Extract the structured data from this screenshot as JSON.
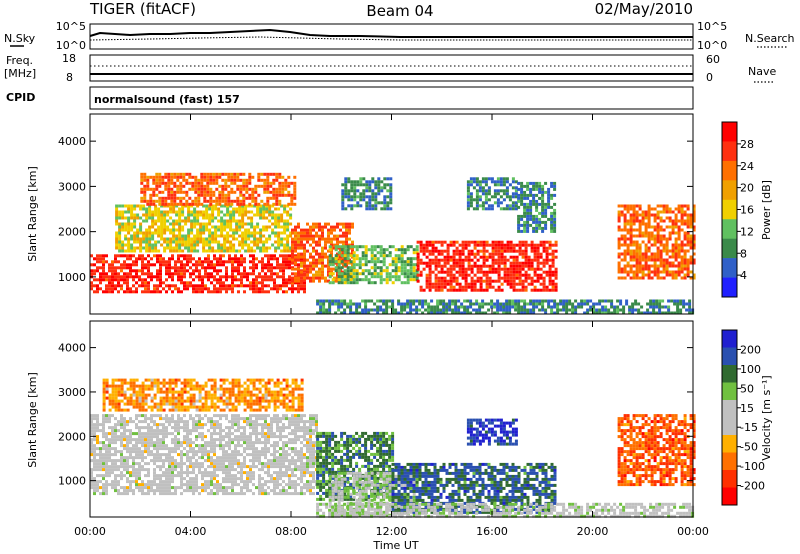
{
  "header": {
    "radar": "TIGER (fitACF)",
    "beam": "Beam 04",
    "date": "02/May/2010"
  },
  "top_strip": {
    "left_label": "N.Sky",
    "right_label": "N.Search",
    "left_ticks": [
      "10^5",
      "10^0"
    ],
    "right_ticks": [
      "10^5",
      "10^0"
    ]
  },
  "freq_strip": {
    "left_label_line1": "Freq.",
    "left_label_line2": "[MHz]",
    "left_ticks": [
      "18",
      "8"
    ],
    "right_label": "Nave",
    "right_ticks": [
      "60",
      "0"
    ]
  },
  "cpid": {
    "label": "CPID",
    "value": "normalsound (fast) 157"
  },
  "colors": {
    "power_scale": [
      "#2020ff",
      "#3060c8",
      "#3a8a4a",
      "#60c060",
      "#f0d000",
      "#f0a000",
      "#ff7000",
      "#ff3010",
      "#ff0000"
    ],
    "velocity_scale": [
      "#2020d0",
      "#2a50b0",
      "#306a30",
      "#70c040",
      "#c0c0c0",
      "#c0c0c0",
      "#ffb000",
      "#ff7000",
      "#ff3000",
      "#ff0000"
    ]
  },
  "chart_data": [
    {
      "type": "heatmap",
      "panel": "power",
      "ylabel": "Slant Range [km]",
      "y_ticks": [
        "1000",
        "2000",
        "3000",
        "4000"
      ],
      "ylim": [
        180,
        4600
      ],
      "x_ticks": [
        "00:00",
        "04:00",
        "08:00",
        "12:00",
        "16:00",
        "20:00",
        "00:00"
      ],
      "xlim_hours": [
        0,
        24
      ],
      "colorbar": {
        "label": "Power [dB]",
        "ticks": [
          "4",
          "8",
          "12",
          "16",
          "20",
          "24",
          "28"
        ],
        "range": [
          0,
          32
        ]
      },
      "regions": [
        {
          "t": [
            0.0,
            8.5
          ],
          "r": [
            700,
            1500
          ],
          "value": 28
        },
        {
          "t": [
            1.0,
            8.0
          ],
          "r": [
            1600,
            2600
          ],
          "value": 16
        },
        {
          "t": [
            2.0,
            8.2
          ],
          "r": [
            2600,
            3300
          ],
          "value": 24
        },
        {
          "t": [
            8.0,
            10.5
          ],
          "r": [
            900,
            2200
          ],
          "value": 24
        },
        {
          "t": [
            9.5,
            13.0
          ],
          "r": [
            900,
            1700
          ],
          "value": 12
        },
        {
          "t": [
            13.0,
            18.5
          ],
          "r": [
            700,
            1800
          ],
          "value": 28
        },
        {
          "t": [
            9.0,
            24.0
          ],
          "r": [
            200,
            500
          ],
          "value": 8
        },
        {
          "t": [
            10.0,
            12.0
          ],
          "r": [
            2500,
            3200
          ],
          "value": 8
        },
        {
          "t": [
            15.0,
            17.0
          ],
          "r": [
            2500,
            3200
          ],
          "value": 8
        },
        {
          "t": [
            17.0,
            18.5
          ],
          "r": [
            2000,
            3100
          ],
          "value": 8
        },
        {
          "t": [
            21.0,
            24.0
          ],
          "r": [
            1000,
            2600
          ],
          "value": 24
        }
      ]
    },
    {
      "type": "heatmap",
      "panel": "velocity",
      "ylabel": "Slant Range [km]",
      "y_ticks": [
        "1000",
        "2000",
        "3000",
        "4000"
      ],
      "ylim": [
        180,
        4600
      ],
      "x_ticks": [
        "00:00",
        "04:00",
        "08:00",
        "12:00",
        "16:00",
        "20:00",
        "00:00"
      ],
      "xlabel": "Time UT",
      "xlim_hours": [
        0,
        24
      ],
      "colorbar": {
        "label": "Velocity [m s⁻¹]",
        "ticks": [
          "200",
          "100",
          "50",
          "15",
          "-15",
          "-50",
          "-100",
          "-200"
        ],
        "range": [
          -250,
          250
        ]
      },
      "regions": [
        {
          "t": [
            0.0,
            9.0
          ],
          "r": [
            700,
            2500
          ],
          "value": 0
        },
        {
          "t": [
            0.5,
            8.5
          ],
          "r": [
            2600,
            3300
          ],
          "value": -100
        },
        {
          "t": [
            9.0,
            12.0
          ],
          "r": [
            600,
            2100
          ],
          "value": 120
        },
        {
          "t": [
            9.5,
            13.0
          ],
          "r": [
            200,
            1200
          ],
          "value": 40
        },
        {
          "t": [
            12.0,
            18.5
          ],
          "r": [
            300,
            1400
          ],
          "value": 150
        },
        {
          "t": [
            9.0,
            24.0
          ],
          "r": [
            200,
            500
          ],
          "value": 20
        },
        {
          "t": [
            15.0,
            17.0
          ],
          "r": [
            1800,
            2400
          ],
          "value": 200
        },
        {
          "t": [
            21.0,
            24.0
          ],
          "r": [
            900,
            2500
          ],
          "value": -150
        }
      ]
    }
  ]
}
